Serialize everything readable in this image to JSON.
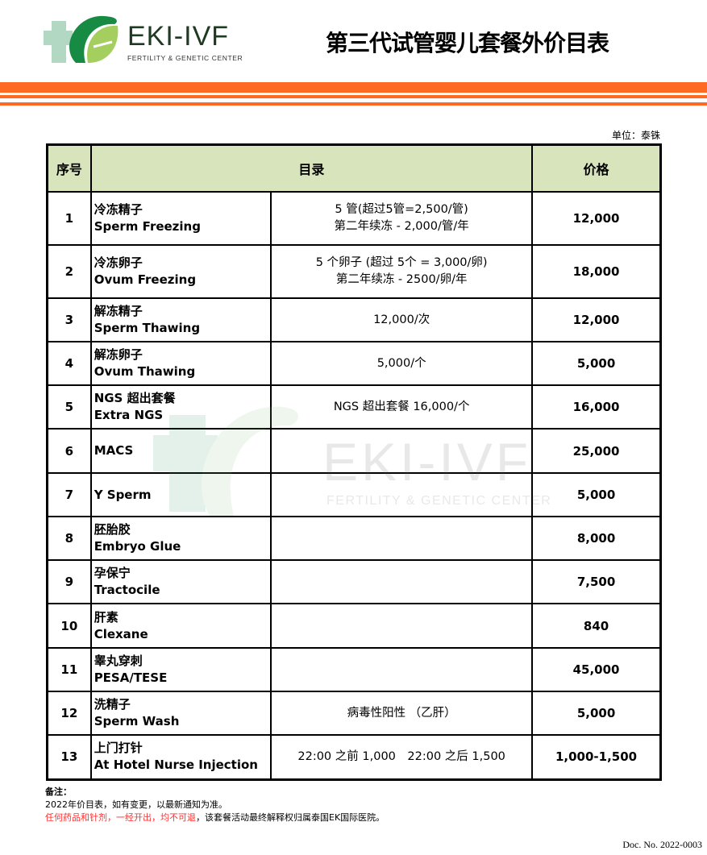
{
  "header": {
    "logo_text": "EKI-IVF",
    "logo_subtitle": "FERTILITY & GENETIC CENTER",
    "title": "第三代试管婴儿套餐外价目表",
    "accent_color": "#ff6a23"
  },
  "unit": "单位：泰铢",
  "table": {
    "headers": [
      "序号",
      "目录",
      "价格"
    ],
    "header_bg": "#d8e4bc",
    "rows": [
      {
        "no": "1",
        "name_cn": "冷冻精子",
        "name_en": "Sperm Freezing",
        "desc1": "5 管(超过5管=2,500/管)",
        "desc2": "第二年续冻 - 2,000/管/年",
        "price": "12,000"
      },
      {
        "no": "2",
        "name_cn": "冷冻卵子",
        "name_en": "Ovum Freezing",
        "desc1": "5 个卵子 (超过 5个 = 3,000/卵)",
        "desc2": "第二年续冻 - 2500/卵/年",
        "price": "18,000"
      },
      {
        "no": "3",
        "name_cn": "解冻精子",
        "name_en": "Sperm Thawing",
        "desc1": "12,000/次",
        "desc2": "",
        "price": "12,000"
      },
      {
        "no": "4",
        "name_cn": "解冻卵子",
        "name_en": "Ovum Thawing",
        "desc1": "5,000/个",
        "desc2": "",
        "price": "5,000"
      },
      {
        "no": "5",
        "name_cn": "NGS 超出套餐",
        "name_en": "Extra NGS",
        "desc1": "NGS 超出套餐 16,000/个",
        "desc2": "",
        "price": "16,000"
      },
      {
        "no": "6",
        "name_cn": "",
        "name_en": "MACS",
        "desc1": "",
        "desc2": "",
        "price": "25,000"
      },
      {
        "no": "7",
        "name_cn": "",
        "name_en": "Y Sperm",
        "desc1": "",
        "desc2": "",
        "price": "5,000"
      },
      {
        "no": "8",
        "name_cn": "胚胎胶",
        "name_en": "Embryo Glue",
        "desc1": "",
        "desc2": "",
        "price": "8,000"
      },
      {
        "no": "9",
        "name_cn": "孕保宁",
        "name_en": "Tractocile",
        "desc1": "",
        "desc2": "",
        "price": "7,500"
      },
      {
        "no": "10",
        "name_cn": "肝素",
        "name_en": "Clexane",
        "desc1": "",
        "desc2": "",
        "price": "840"
      },
      {
        "no": "11",
        "name_cn": "睾丸穿刺",
        "name_en": "PESA/TESE",
        "desc1": "",
        "desc2": "",
        "price": "45,000"
      },
      {
        "no": "12",
        "name_cn": "洗精子",
        "name_en": "Sperm Wash",
        "desc1": "病毒性阳性 （乙肝）",
        "desc2": "",
        "price": "5,000"
      },
      {
        "no": "13",
        "name_cn": "上门打针",
        "name_en": "At Hotel Nurse Injection",
        "desc1": "22:00 之前 1,000　22:00 之后 1,500",
        "desc2": "",
        "price": "1,000-1,500"
      }
    ]
  },
  "notes": {
    "label": "备注：",
    "line1": "2022年价目表，如有变更，以最新通知为准。",
    "line2_red": "任何药品和针剂，一经开出，均不可退",
    "line2_rest": "，该套餐活动最终解释权归属泰国EK国际医院。"
  },
  "doc_no": "Doc. No.  2022-0003"
}
